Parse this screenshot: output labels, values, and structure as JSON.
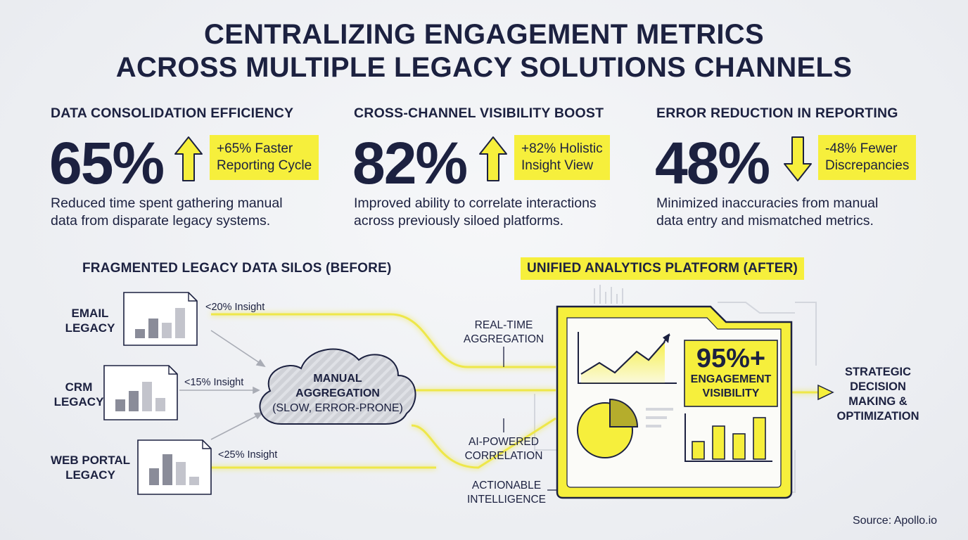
{
  "title": {
    "line1": "CENTRALIZING ENGAGEMENT METRICS",
    "line2": "ACROSS MULTIPLE LEGACY SOLUTIONS CHANNELS"
  },
  "kpis": [
    {
      "heading": "DATA CONSOLIDATION EFFICIENCY",
      "value": "65%",
      "direction": "up",
      "tag": "+65% Faster\nReporting Cycle",
      "description": "Reduced time spent gathering manual\ndata from disparate legacy systems."
    },
    {
      "heading": "CROSS-CHANNEL VISIBILITY BOOST",
      "value": "82%",
      "direction": "up",
      "tag": "+82% Holistic\nInsight View",
      "description": "Improved ability to correlate interactions\nacross previously siloed platforms."
    },
    {
      "heading": "ERROR REDUCTION IN REPORTING",
      "value": "48%",
      "direction": "down",
      "tag": "-48% Fewer\nDiscrepancies",
      "description": "Minimized inaccuracies from manual\ndata entry and mismatched metrics."
    }
  ],
  "before": {
    "heading": "FRAGMENTED LEGACY DATA SILOS (BEFORE)",
    "silos": [
      {
        "label": "EMAIL\nLEGACY",
        "insight": "<20% Insight"
      },
      {
        "label": "CRM\nLEGACY",
        "insight": "<15% Insight"
      },
      {
        "label": "WEB PORTAL\nLEGACY",
        "insight": "<25% Insight"
      }
    ],
    "cloud": {
      "line1": "MANUAL",
      "line2": "AGGREGATION",
      "line3": "(SLOW, ERROR-PRONE)"
    }
  },
  "after": {
    "heading": "UNIFIED ANALYTICS PLATFORM (AFTER)",
    "flow_labels": {
      "realtime": "REAL-TIME\nAGGREGATION",
      "ai": "AI-POWERED\nCORRELATION",
      "actionable": "ACTIONABLE\nINTELLIGENCE"
    },
    "stat_value": "95%+",
    "stat_label": "ENGAGEMENT\nVISIBILITY",
    "outcome": "STRATEGIC\nDECISION\nMAKING &\nOPTIMIZATION"
  },
  "source": "Source: Apollo.io",
  "colors": {
    "accent_yellow": "#f6ef3c",
    "navy": "#1c2140",
    "silo_bar": "#8a8c99",
    "silo_bar_light": "#c3c4cc"
  },
  "icons": {
    "up_arrow": "arrow-up-icon",
    "down_arrow": "arrow-down-icon",
    "cloud": "cloud-icon",
    "line_chart": "line-chart-icon",
    "pie_chart": "pie-chart-icon",
    "bar_chart": "bar-chart-icon"
  }
}
